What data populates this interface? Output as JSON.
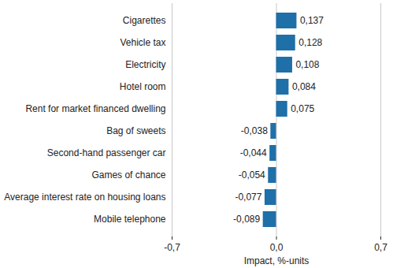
{
  "chart_data": {
    "type": "bar",
    "orientation": "horizontal",
    "categories": [
      "Cigarettes",
      "Vehicle tax",
      "Electricity",
      "Hotel room",
      "Rent for market financed dwelling",
      "Bag of sweets",
      "Second-hand passenger car",
      "Games of chance",
      "Average interest rate on housing loans",
      "Mobile telephone"
    ],
    "values": [
      0.137,
      0.128,
      0.108,
      0.084,
      0.075,
      -0.038,
      -0.044,
      -0.054,
      -0.077,
      -0.089
    ],
    "value_labels": [
      "0,137",
      "0,128",
      "0,108",
      "0,084",
      "0,075",
      "-0,038",
      "-0,044",
      "-0,054",
      "-0,077",
      "-0,089"
    ],
    "data_labels": true,
    "color": "#1f6fa8",
    "xlabel": "Impact, %-units",
    "xlim": [
      -0.7,
      0.7
    ],
    "xticks": [
      {
        "value": -0.7,
        "label": "-0,7"
      },
      {
        "value": 0.0,
        "label": "0,0"
      },
      {
        "value": 0.7,
        "label": "0,7"
      }
    ],
    "grid": true
  }
}
